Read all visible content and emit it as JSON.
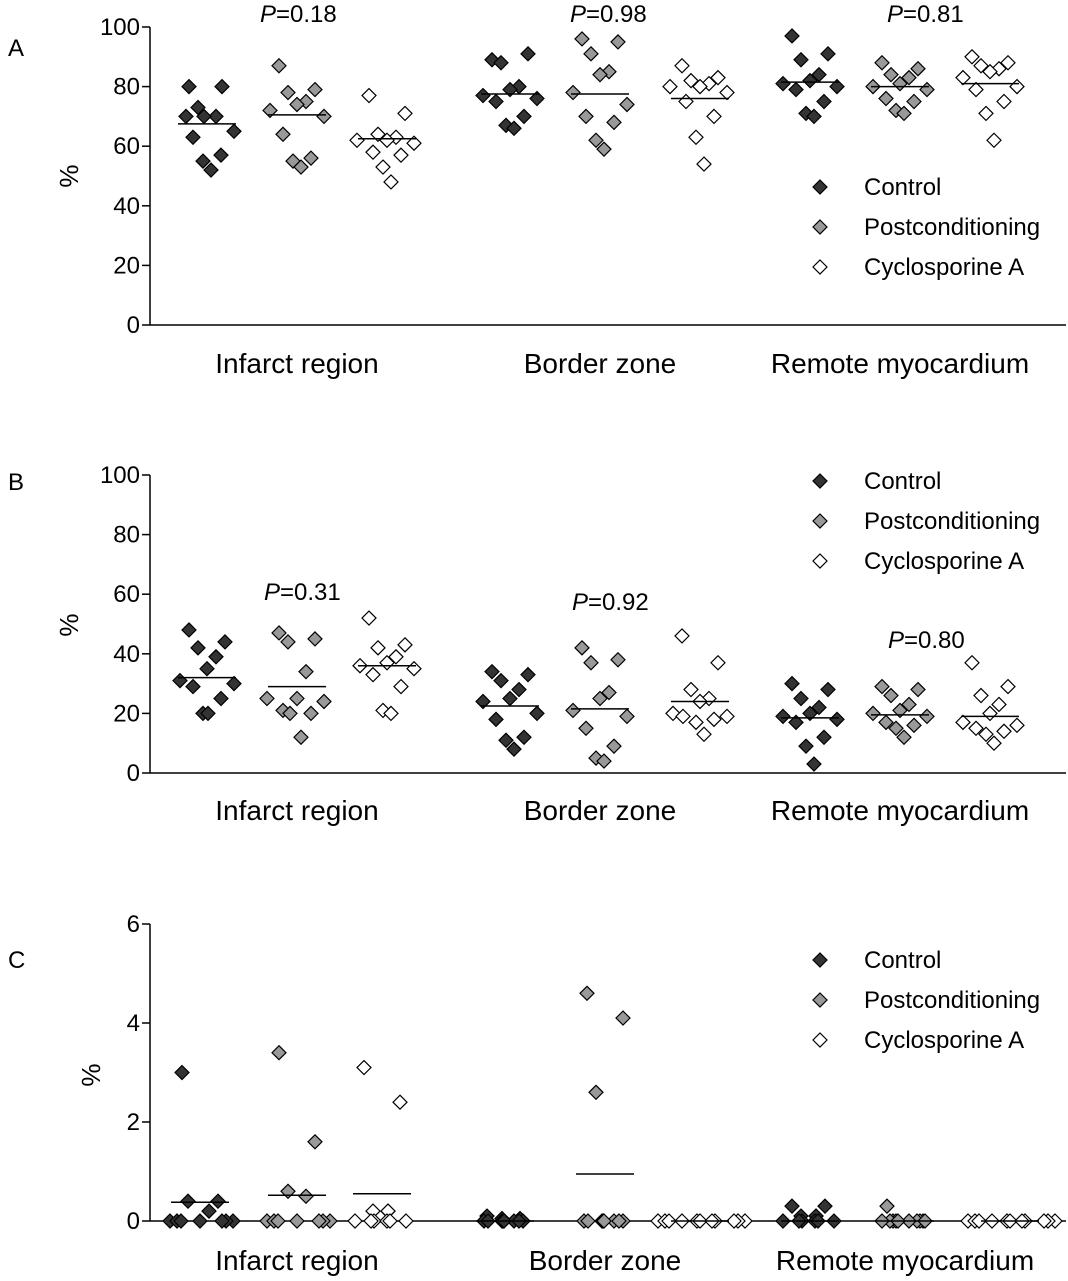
{
  "chart_data": [
    {
      "type": "scatter",
      "panel_label": "A",
      "ylabel": "%",
      "ylim": [
        0,
        100
      ],
      "yticks": [
        "0",
        "20",
        "40",
        "60",
        "80",
        "100"
      ],
      "categories": [
        "Infarct region",
        "Border zone",
        "Remote myocardium"
      ],
      "legend": {
        "position": "right",
        "entries": [
          "Control",
          "Postconditioning",
          "Cyclosporine A"
        ]
      },
      "p_values": [
        {
          "prefix": "P",
          "value": "=0.18"
        },
        {
          "prefix": "P",
          "value": "=0.98"
        },
        {
          "prefix": "P",
          "value": "=0.81"
        }
      ],
      "series": [
        {
          "name": "Control",
          "color": "#333333",
          "values": [
            [
              80,
              80,
              73,
              70,
              70,
              70,
              65,
              63,
              57,
              55,
              52
            ],
            [
              89,
              91,
              88,
              80,
              79,
              77,
              76,
              75,
              70,
              67,
              66
            ],
            [
              97,
              91,
              89,
              84,
              82,
              81,
              80,
              79,
              75,
              71,
              70
            ]
          ],
          "medians": [
            67.5,
            77.5,
            81.5
          ]
        },
        {
          "name": "Postconditioning",
          "color": "#999999",
          "values": [
            [
              87,
              79,
              78,
              75,
              74,
              72,
              70,
              64,
              56,
              55,
              53
            ],
            [
              96,
              95,
              91,
              85,
              84,
              78,
              74,
              70,
              68,
              62,
              59
            ],
            [
              88,
              86,
              84,
              83,
              81,
              80,
              79,
              76,
              75,
              72,
              71
            ]
          ],
          "medians": [
            70.5,
            77.5,
            80
          ]
        },
        {
          "name": "Cyclosporine A",
          "color": "#ffffff",
          "values": [
            [
              77,
              71,
              64,
              63,
              62,
              62,
              61,
              58,
              57,
              53,
              48
            ],
            [
              87,
              83,
              82,
              81,
              80,
              80,
              78,
              75,
              70,
              63,
              54
            ],
            [
              90,
              88,
              87,
              86,
              85,
              83,
              80,
              79,
              75,
              71,
              62
            ]
          ],
          "medians": [
            62.5,
            76,
            81
          ]
        }
      ]
    },
    {
      "type": "scatter",
      "panel_label": "B",
      "ylabel": "%",
      "ylim": [
        0,
        100
      ],
      "yticks": [
        "0",
        "20",
        "40",
        "60",
        "80",
        "100"
      ],
      "categories": [
        "Infarct region",
        "Border zone",
        "Remote myocardium"
      ],
      "legend": {
        "position": "top-right",
        "entries": [
          "Control",
          "Postconditioning",
          "Cyclosporine A"
        ]
      },
      "p_values": [
        {
          "prefix": "P",
          "value": "=0.31"
        },
        {
          "prefix": "P",
          "value": "=0.92"
        },
        {
          "prefix": "P",
          "value": "=0.80"
        }
      ],
      "series": [
        {
          "name": "Control",
          "color": "#333333",
          "values": [
            [
              48,
              44,
              42,
              39,
              35,
              31,
              30,
              29,
              25,
              20,
              20
            ],
            [
              34,
              33,
              31,
              28,
              25,
              24,
              20,
              18,
              12,
              11,
              8
            ],
            [
              30,
              28,
              25,
              22,
              20,
              19,
              18,
              17,
              12,
              9,
              3
            ]
          ],
          "medians": [
            32,
            22.5,
            18.5
          ]
        },
        {
          "name": "Postconditioning",
          "color": "#999999",
          "values": [
            [
              47,
              45,
              44,
              34,
              25,
              25,
              24,
              21,
              20,
              20,
              12
            ],
            [
              42,
              38,
              37,
              27,
              25,
              21,
              19,
              15,
              9,
              5,
              4
            ],
            [
              29,
              28,
              26,
              23,
              21,
              20,
              19,
              17,
              16,
              15,
              12
            ]
          ],
          "medians": [
            29,
            21.5,
            19.5
          ]
        },
        {
          "name": "Cyclosporine A",
          "color": "#ffffff",
          "values": [
            [
              52,
              43,
              42,
              39,
              37,
              36,
              35,
              33,
              29,
              21,
              20
            ],
            [
              46,
              37,
              28,
              25,
              24,
              20,
              19,
              19,
              18,
              17,
              13
            ],
            [
              37,
              29,
              26,
              23,
              20,
              17,
              16,
              15,
              14,
              13,
              10
            ]
          ],
          "medians": [
            36,
            24,
            19
          ]
        }
      ]
    },
    {
      "type": "scatter",
      "panel_label": "C",
      "ylabel": "%",
      "ylim": [
        0,
        6
      ],
      "yticks": [
        "0",
        "2",
        "4",
        "6"
      ],
      "categories": [
        "Infarct region",
        "Border zone",
        "Remote myocardium"
      ],
      "legend": {
        "position": "top-right",
        "entries": [
          "Control",
          "Postconditioning",
          "Cyclosporine A"
        ]
      },
      "p_values": [],
      "series": [
        {
          "name": "Control",
          "color": "#333333",
          "values": [
            [
              3.0,
              0.4,
              0.4,
              0.2,
              0,
              0,
              0,
              0,
              0,
              0,
              0
            ],
            [
              0.1,
              0.05,
              0.05,
              0,
              0,
              0,
              0,
              0,
              0,
              0,
              0
            ],
            [
              0.3,
              0.3,
              0.1,
              0.1,
              0.1,
              0,
              0,
              0,
              0,
              0,
              0
            ]
          ],
          "medians": [
            0.38,
            0,
            0
          ]
        },
        {
          "name": "Postconditioning",
          "color": "#999999",
          "values": [
            [
              3.4,
              1.6,
              0.6,
              0.5,
              0,
              0,
              0,
              0,
              0,
              0,
              0
            ],
            [
              4.6,
              4.1,
              2.6,
              0,
              0,
              0,
              0,
              0,
              0,
              0,
              0
            ],
            [
              0.3,
              0,
              0,
              0,
              0,
              0,
              0,
              0,
              0,
              0,
              0
            ]
          ],
          "medians": [
            0.52,
            0.95,
            0
          ]
        },
        {
          "name": "Cyclosporine A",
          "color": "#ffffff",
          "values": [
            [
              3.1,
              2.4,
              0.2,
              0.2,
              0.2,
              0,
              0,
              0,
              0,
              0,
              0
            ],
            [
              0,
              0,
              0,
              0,
              0,
              0,
              0,
              0,
              0,
              0,
              0
            ],
            [
              0,
              0,
              0,
              0,
              0,
              0,
              0,
              0,
              0,
              0,
              0
            ]
          ],
          "medians": [
            0.55,
            0,
            0
          ]
        }
      ]
    }
  ]
}
